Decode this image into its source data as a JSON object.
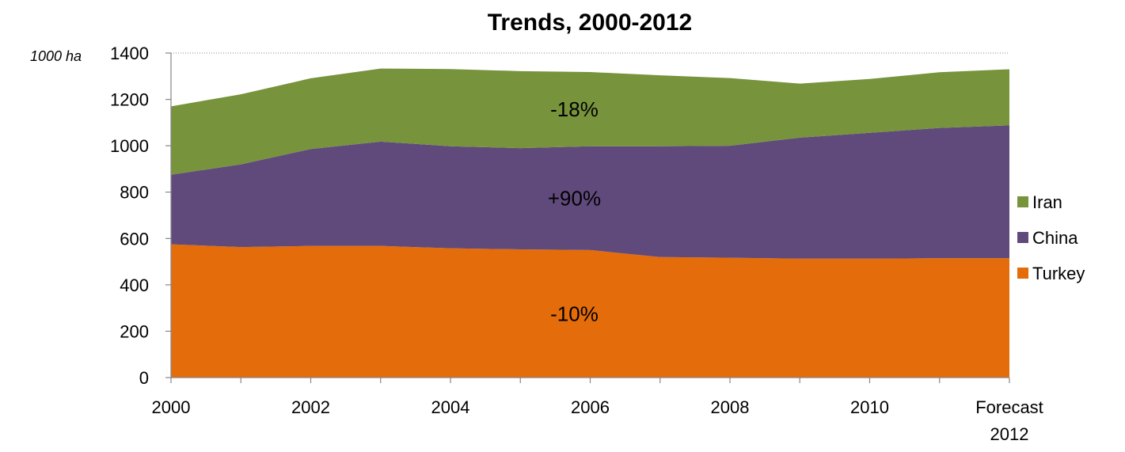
{
  "chart_data": {
    "type": "area",
    "stacked": true,
    "title": "Trends, 2000-2012",
    "unit_label": "1000 ha",
    "x": [
      2000,
      2001,
      2002,
      2003,
      2004,
      2005,
      2006,
      2007,
      2008,
      2009,
      2010,
      2011,
      2012
    ],
    "x_tick_labels": [
      {
        "x": 2000,
        "lines": [
          "2000"
        ]
      },
      {
        "x": 2002,
        "lines": [
          "2002"
        ]
      },
      {
        "x": 2004,
        "lines": [
          "2004"
        ]
      },
      {
        "x": 2006,
        "lines": [
          "2006"
        ]
      },
      {
        "x": 2008,
        "lines": [
          "2008"
        ]
      },
      {
        "x": 2010,
        "lines": [
          "2010"
        ]
      },
      {
        "x": 2012,
        "lines": [
          "Forecast",
          "2012"
        ]
      }
    ],
    "ylim": [
      0,
      1400
    ],
    "y_ticks": [
      0,
      200,
      400,
      600,
      800,
      1000,
      1200,
      1400
    ],
    "grid": "horizontal dotted at top",
    "legend_position": "right",
    "series": [
      {
        "name": "Turkey",
        "color": "#E46C0A",
        "values": [
          575,
          563,
          568,
          568,
          558,
          553,
          550,
          520,
          517,
          513,
          513,
          515,
          515
        ]
      },
      {
        "name": "China",
        "color": "#604A7B",
        "values": [
          300,
          357,
          418,
          450,
          440,
          437,
          448,
          478,
          483,
          522,
          543,
          562,
          573
        ]
      },
      {
        "name": "Iran",
        "color": "#77933C",
        "values": [
          295,
          302,
          305,
          315,
          333,
          332,
          320,
          306,
          292,
          233,
          232,
          240,
          242
        ]
      }
    ],
    "annotations": [
      {
        "series": "Iran",
        "text": "-18%",
        "x": 2006
      },
      {
        "series": "China",
        "text": "+90%",
        "x": 2006
      },
      {
        "series": "Turkey",
        "text": "-10%",
        "x": 2006
      }
    ]
  }
}
